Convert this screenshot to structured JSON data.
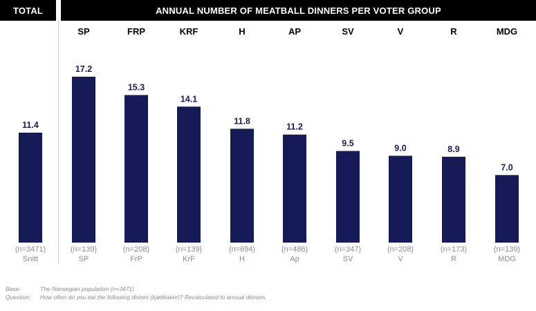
{
  "header": {
    "total_label": "TOTAL",
    "title": "ANNUAL NUMBER OF MEATBALL DINNERS PER VOTER GROUP"
  },
  "chart_data": {
    "type": "bar",
    "title": "ANNUAL NUMBER OF MEATBALL DINNERS PER VOTER GROUP",
    "xlabel": "",
    "ylabel": "",
    "ylim": [
      0,
      20
    ],
    "grid": false,
    "bars": [
      {
        "column_label": "",
        "value": 11.4,
        "value_label": "11.4",
        "n_label": "(n=3471)",
        "category": "Snitt",
        "group": "total"
      },
      {
        "column_label": "SP",
        "value": 17.2,
        "value_label": "17.2",
        "n_label": "(n=139)",
        "category": "SP",
        "group": "voter"
      },
      {
        "column_label": "FRP",
        "value": 15.3,
        "value_label": "15.3",
        "n_label": "(n=208)",
        "category": "FrP",
        "group": "voter"
      },
      {
        "column_label": "KRF",
        "value": 14.1,
        "value_label": "14.1",
        "n_label": "(n=139)",
        "category": "KrF",
        "group": "voter"
      },
      {
        "column_label": "H",
        "value": 11.8,
        "value_label": "11.8",
        "n_label": "(n=694)",
        "category": "H",
        "group": "voter"
      },
      {
        "column_label": "AP",
        "value": 11.2,
        "value_label": "11.2",
        "n_label": "(n=486)",
        "category": "Ap",
        "group": "voter"
      },
      {
        "column_label": "SV",
        "value": 9.5,
        "value_label": "9.5",
        "n_label": "(n=347)",
        "category": "SV",
        "group": "voter"
      },
      {
        "column_label": "V",
        "value": 9.0,
        "value_label": "9.0",
        "n_label": "(n=208)",
        "category": "V",
        "group": "voter"
      },
      {
        "column_label": "R",
        "value": 8.9,
        "value_label": "8.9",
        "n_label": "(n=173)",
        "category": "R",
        "group": "voter"
      },
      {
        "column_label": "MDG",
        "value": 7.0,
        "value_label": "7.0",
        "n_label": "(n=139)",
        "category": "MDG",
        "group": "voter"
      }
    ]
  },
  "footnotes": {
    "base_key": "Base:",
    "base_text": "The Norwegian population (n=3471)",
    "question_key": "Question:",
    "question_text": "How often do you eat the following dishes (kjøttkaker)? Recalculated to annual dinners."
  },
  "colors": {
    "bar": "#151b57",
    "value_label": "#1a1f5a",
    "header_bg": "#000000"
  }
}
